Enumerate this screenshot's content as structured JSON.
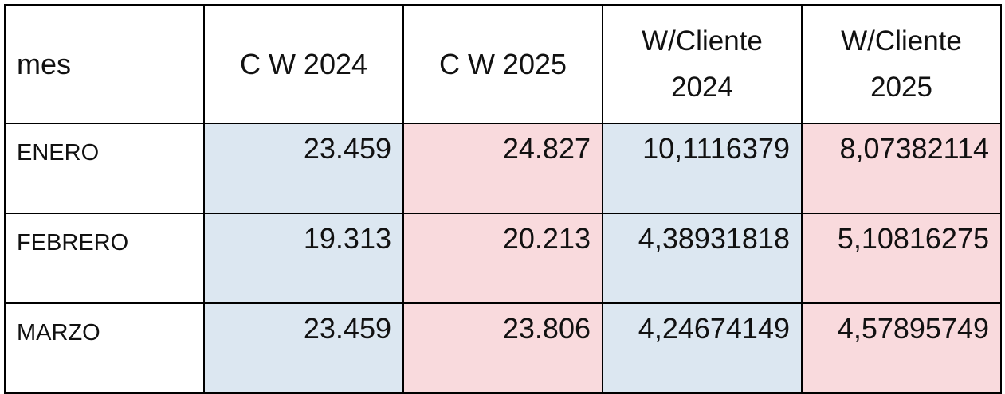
{
  "table": {
    "headers": [
      "mes",
      "C W 2024",
      "C W 2025",
      "W/Cliente 2024",
      "W/Cliente 2025"
    ],
    "header_lines": {
      "wc2024": [
        "W/Cliente",
        "2024"
      ],
      "wc2025": [
        "W/Cliente",
        "2025"
      ]
    },
    "rows": [
      {
        "mes": "ENERO",
        "cw2024": "23.459",
        "cw2025": "24.827",
        "wc2024": "10,1116379",
        "wc2025": "8,07382114"
      },
      {
        "mes": "FEBRERO",
        "cw2024": "19.313",
        "cw2025": "20.213",
        "wc2024": "4,38931818",
        "wc2025": "5,10816275"
      },
      {
        "mes": "MARZO",
        "cw2024": "23.459",
        "cw2025": "23.806",
        "wc2024": "4,24674149",
        "wc2025": "4,57895749"
      }
    ]
  },
  "colors": {
    "col_2024_fill": "#dce7f1",
    "col_2025_fill": "#f9dadd",
    "border": "#000000"
  }
}
